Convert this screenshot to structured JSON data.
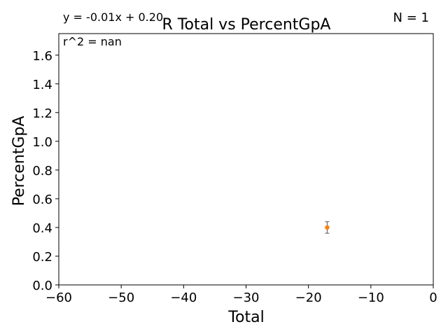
{
  "chart_data": {
    "type": "scatter",
    "title": "R Total vs PercentGpA",
    "xlabel": "Total",
    "ylabel": "PercentGpA",
    "xlim": [
      -60,
      0
    ],
    "ylim": [
      0.0,
      1.75
    ],
    "xticks": [
      -60,
      -50,
      -40,
      -30,
      -20,
      -10,
      0
    ],
    "xtick_labels": [
      "−60",
      "−50",
      "−40",
      "−30",
      "−20",
      "−10",
      "0"
    ],
    "yticks": [
      0.0,
      0.2,
      0.4,
      0.6,
      0.8,
      1.0,
      1.2,
      1.4,
      1.6
    ],
    "ytick_labels": [
      "0.0",
      "0.2",
      "0.4",
      "0.6",
      "0.8",
      "1.0",
      "1.2",
      "1.4",
      "1.6"
    ],
    "grid": false,
    "series": [
      {
        "points": [
          {
            "x": -17,
            "y": 0.4,
            "yerr": 0.04
          }
        ],
        "color": "#ff7f0e",
        "errorbar_color": "#555555"
      }
    ],
    "annotations": {
      "equation": "y = -0.01x + 0.20",
      "r_squared": "r^2 = nan",
      "n": "N = 1"
    }
  }
}
